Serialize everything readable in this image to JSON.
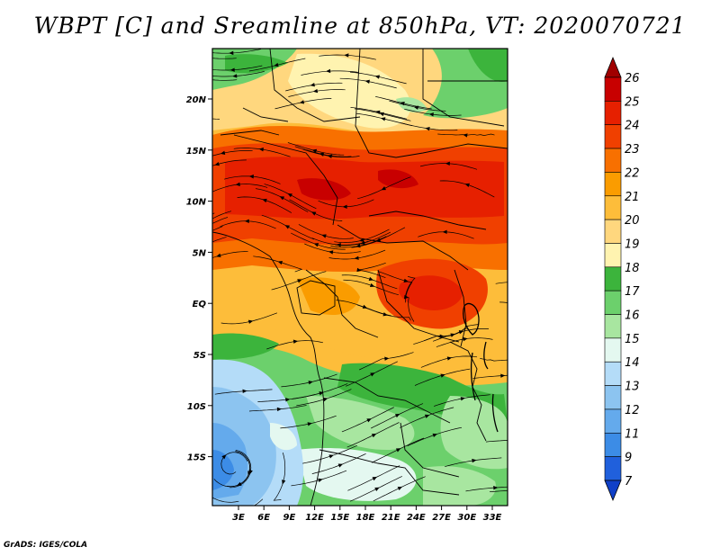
{
  "title": "WBPT [C] and Sreamline at 850hPa, VT: 2020070721",
  "map": {
    "variable": "WBPT",
    "unit": "C",
    "level": "850hPa",
    "valid_time": "2020070721",
    "lon_labels": [
      "3E",
      "6E",
      "9E",
      "12E",
      "15E",
      "18E",
      "21E",
      "24E",
      "27E",
      "30E",
      "33E"
    ],
    "lat_labels": [
      "20N",
      "15N",
      "10N",
      "5N",
      "EQ",
      "5S",
      "10S",
      "15S"
    ]
  },
  "colorbar": {
    "levels": [
      "26",
      "25",
      "24",
      "23",
      "22",
      "21",
      "20",
      "19",
      "18",
      "17",
      "16",
      "15",
      "14",
      "13",
      "12",
      "11",
      "9",
      "7"
    ],
    "colors": [
      "#a00000",
      "#c80000",
      "#e62000",
      "#f04000",
      "#f87000",
      "#fa9c00",
      "#fdbd3a",
      "#ffd77e",
      "#fff3b0",
      "#3cb43c",
      "#6cd06c",
      "#a8e6a0",
      "#e4f8f0",
      "#b4dcf8",
      "#8cc4f0",
      "#64aaec",
      "#3c8ce6",
      "#2060dc",
      "#1040c8"
    ]
  },
  "credit": "GrADS: IGES/COLA"
}
